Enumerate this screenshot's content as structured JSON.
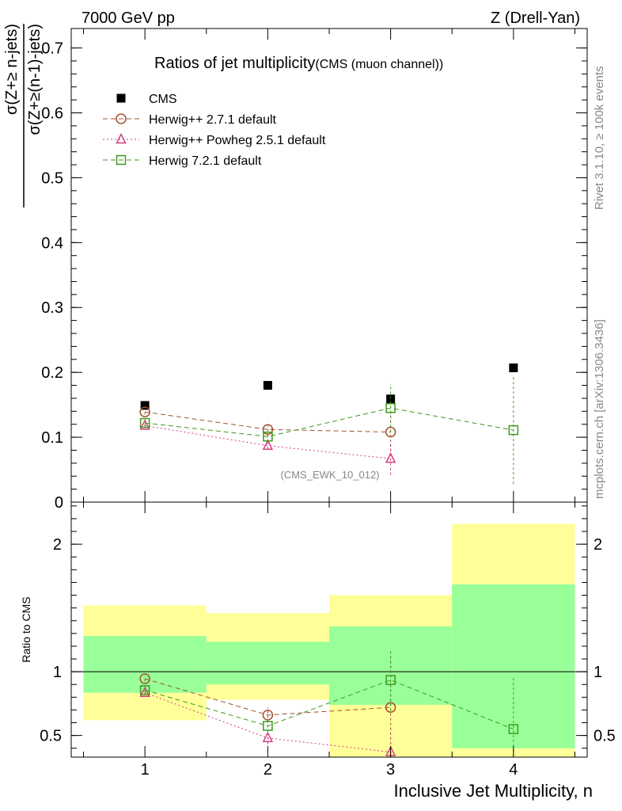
{
  "header": {
    "left": "7000 GeV pp",
    "right": "Z (Drell-Yan)"
  },
  "side_labels": {
    "rivet": "Rivet 3.1.10, ≥ 100k events",
    "mcplots": "mcplots.cern.ch [arXiv:1306.3436]"
  },
  "chart_data": [
    {
      "type": "scatter",
      "panel": "main",
      "title": "Ratios of jet multiplicity",
      "subtitle": "(CMS (muon channel))",
      "watermark": "(CMS_EWK_10_012)",
      "ylabel_numerator": "σ(Z+≥ n-jets)",
      "ylabel_denominator": "σ(Z+≥(n-1)-jets)",
      "ylim": [
        0,
        0.73
      ],
      "yticks": [
        0,
        0.1,
        0.2,
        0.3,
        0.4,
        0.5,
        0.6,
        0.7
      ],
      "ytick_labels": [
        "0",
        "0.1",
        "0.2",
        "0.3",
        "0.4",
        "0.5",
        "0.6",
        "0.7"
      ],
      "xlim": [
        0.4,
        4.6
      ],
      "legend_position": "top-left",
      "series": [
        {
          "name": "CMS",
          "marker": "filled-square",
          "color": "#000000",
          "line": "none",
          "x": [
            1,
            2,
            3,
            4
          ],
          "y": [
            0.149,
            0.18,
            0.159,
            0.207
          ],
          "err": [
            0.0,
            0.0,
            0.0,
            0.0
          ]
        },
        {
          "name": "Herwig++ 2.7.1 default",
          "marker": "open-circle",
          "color": "#a0522d",
          "line": "dashed",
          "x": [
            1,
            2,
            3
          ],
          "y": [
            0.139,
            0.112,
            0.108
          ],
          "err": [
            0.004,
            0.01,
            0.03
          ]
        },
        {
          "name": "Herwig++ Powheg 2.5.1 default",
          "marker": "open-triangle",
          "color": "#d63d80",
          "line": "dotted",
          "x": [
            1,
            2,
            3
          ],
          "y": [
            0.118,
            0.087,
            0.067
          ],
          "err": [
            0.003,
            0.005,
            0.025
          ]
        },
        {
          "name": "Herwig 7.2.1 default",
          "marker": "open-square",
          "color": "#3d9a1a",
          "line": "dashed",
          "x": [
            1,
            2,
            3,
            4
          ],
          "y": [
            0.122,
            0.101,
            0.145,
            0.111
          ],
          "err": [
            0.004,
            0.008,
            0.037,
            0.083
          ]
        }
      ]
    },
    {
      "type": "scatter",
      "panel": "ratio",
      "ylabel": "Ratio to CMS",
      "xlabel": "Inclusive Jet Multiplicity, n",
      "ylim": [
        0.33,
        2.33
      ],
      "yticks": [
        0.5,
        1,
        2
      ],
      "ytick_labels": [
        "0.5",
        "1",
        "2"
      ],
      "xticks": [
        1,
        2,
        3,
        4
      ],
      "xtick_labels": [
        "1",
        "2",
        "3",
        "4"
      ],
      "xlim": [
        0.4,
        4.6
      ],
      "reference_line": 1,
      "bands": [
        {
          "x0": 0.5,
          "x1": 1.5,
          "inner": [
            0.835,
            1.28
          ],
          "outer": [
            0.62,
            1.52
          ]
        },
        {
          "x0": 1.5,
          "x1": 2.5,
          "inner": [
            0.9,
            1.235
          ],
          "outer": [
            0.78,
            1.46
          ]
        },
        {
          "x0": 2.5,
          "x1": 3.5,
          "inner": [
            0.74,
            1.355
          ],
          "outer": [
            0.33,
            1.6
          ]
        },
        {
          "x0": 3.5,
          "x1": 4.5,
          "inner": [
            0.4,
            1.685
          ],
          "outer": [
            0.33,
            2.16
          ]
        }
      ],
      "band_colors": {
        "inner": "#99ff99",
        "outer": "#ffff99"
      },
      "series": [
        {
          "name": "Herwig++ 2.7.1 default",
          "color": "#a0522d",
          "line": "dashed",
          "x": [
            1,
            2,
            3
          ],
          "y": [
            0.945,
            0.66,
            0.72
          ],
          "err": [
            0.02,
            0.06,
            0.4
          ]
        },
        {
          "name": "Herwig++ Powheg 2.5.1 default",
          "color": "#d63d80",
          "line": "dotted",
          "x": [
            1,
            2,
            3
          ],
          "y": [
            0.835,
            0.48,
            0.37
          ],
          "err": [
            0.015,
            0.05,
            0.2
          ]
        },
        {
          "name": "Herwig 7.2.1 default",
          "color": "#3d9a1a",
          "line": "dashed",
          "x": [
            1,
            2,
            3,
            4
          ],
          "y": [
            0.855,
            0.575,
            0.935,
            0.55
          ],
          "err": [
            0.015,
            0.05,
            0.24,
            0.4
          ]
        }
      ]
    }
  ]
}
